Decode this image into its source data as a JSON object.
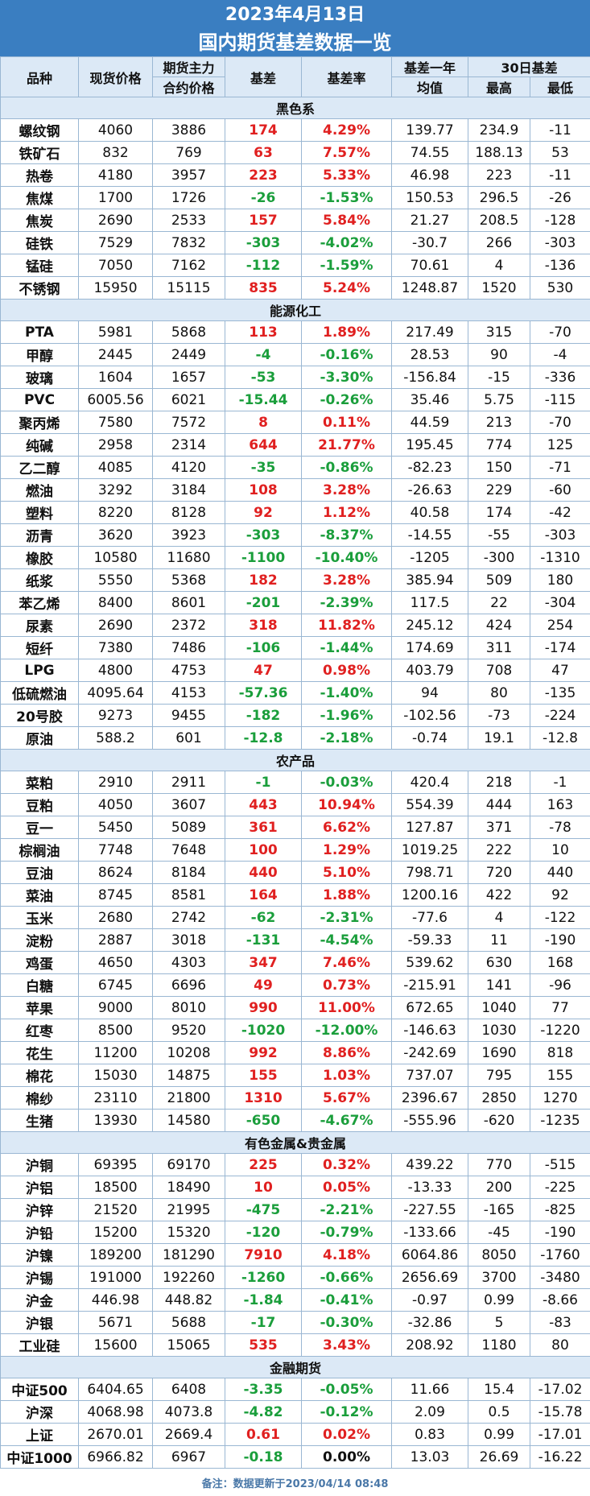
{
  "title": {
    "date": "2023年4月13日",
    "main": "国内期货基差数据一览"
  },
  "headers": {
    "variety": "品种",
    "spot": "现货价格",
    "futures_l1": "期货主力",
    "futures_l2": "合约价格",
    "basis": "基差",
    "basis_rate": "基差率",
    "avg_l1": "基差一年",
    "avg_l2": "均值",
    "d30": "30日基差",
    "high": "最高",
    "low": "最低"
  },
  "colors": {
    "positive": "#e02020",
    "negative": "#1a9e3b",
    "header_bg": "#3a7ec1",
    "section_bg": "#dce9f6"
  },
  "sections": [
    {
      "name": "黑色系",
      "rows": [
        [
          "螺纹钢",
          "4060",
          "3886",
          "174",
          "4.29%",
          "139.77",
          "234.9",
          "-11"
        ],
        [
          "铁矿石",
          "832",
          "769",
          "63",
          "7.57%",
          "74.55",
          "188.13",
          "53"
        ],
        [
          "热卷",
          "4180",
          "3957",
          "223",
          "5.33%",
          "46.98",
          "223",
          "-11"
        ],
        [
          "焦煤",
          "1700",
          "1726",
          "-26",
          "-1.53%",
          "150.53",
          "296.5",
          "-26"
        ],
        [
          "焦炭",
          "2690",
          "2533",
          "157",
          "5.84%",
          "21.27",
          "208.5",
          "-128"
        ],
        [
          "硅铁",
          "7529",
          "7832",
          "-303",
          "-4.02%",
          "-30.7",
          "266",
          "-303"
        ],
        [
          "锰硅",
          "7050",
          "7162",
          "-112",
          "-1.59%",
          "70.61",
          "4",
          "-136"
        ],
        [
          "不锈钢",
          "15950",
          "15115",
          "835",
          "5.24%",
          "1248.87",
          "1520",
          "530"
        ]
      ]
    },
    {
      "name": "能源化工",
      "rows": [
        [
          "PTA",
          "5981",
          "5868",
          "113",
          "1.89%",
          "217.49",
          "315",
          "-70"
        ],
        [
          "甲醇",
          "2445",
          "2449",
          "-4",
          "-0.16%",
          "28.53",
          "90",
          "-4"
        ],
        [
          "玻璃",
          "1604",
          "1657",
          "-53",
          "-3.30%",
          "-156.84",
          "-15",
          "-336"
        ],
        [
          "PVC",
          "6005.56",
          "6021",
          "-15.44",
          "-0.26%",
          "35.46",
          "5.75",
          "-115"
        ],
        [
          "聚丙烯",
          "7580",
          "7572",
          "8",
          "0.11%",
          "44.59",
          "213",
          "-70"
        ],
        [
          "纯碱",
          "2958",
          "2314",
          "644",
          "21.77%",
          "195.45",
          "774",
          "125"
        ],
        [
          "乙二醇",
          "4085",
          "4120",
          "-35",
          "-0.86%",
          "-82.23",
          "150",
          "-71"
        ],
        [
          "燃油",
          "3292",
          "3184",
          "108",
          "3.28%",
          "-26.63",
          "229",
          "-60"
        ],
        [
          "塑料",
          "8220",
          "8128",
          "92",
          "1.12%",
          "40.58",
          "174",
          "-42"
        ],
        [
          "沥青",
          "3620",
          "3923",
          "-303",
          "-8.37%",
          "-14.55",
          "-55",
          "-303"
        ],
        [
          "橡胶",
          "10580",
          "11680",
          "-1100",
          "-10.40%",
          "-1205",
          "-300",
          "-1310"
        ],
        [
          "纸浆",
          "5550",
          "5368",
          "182",
          "3.28%",
          "385.94",
          "509",
          "180"
        ],
        [
          "苯乙烯",
          "8400",
          "8601",
          "-201",
          "-2.39%",
          "117.5",
          "22",
          "-304"
        ],
        [
          "尿素",
          "2690",
          "2372",
          "318",
          "11.82%",
          "245.12",
          "424",
          "254"
        ],
        [
          "短纤",
          "7380",
          "7486",
          "-106",
          "-1.44%",
          "174.69",
          "311",
          "-174"
        ],
        [
          "LPG",
          "4800",
          "4753",
          "47",
          "0.98%",
          "403.79",
          "708",
          "47"
        ],
        [
          "低硫燃油",
          "4095.64",
          "4153",
          "-57.36",
          "-1.40%",
          "94",
          "80",
          "-135"
        ],
        [
          "20号胶",
          "9273",
          "9455",
          "-182",
          "-1.96%",
          "-102.56",
          "-73",
          "-224"
        ],
        [
          "原油",
          "588.2",
          "601",
          "-12.8",
          "-2.18%",
          "-0.74",
          "19.1",
          "-12.8"
        ]
      ]
    },
    {
      "name": "农产品",
      "rows": [
        [
          "菜粕",
          "2910",
          "2911",
          "-1",
          "-0.03%",
          "420.4",
          "218",
          "-1"
        ],
        [
          "豆粕",
          "4050",
          "3607",
          "443",
          "10.94%",
          "554.39",
          "444",
          "163"
        ],
        [
          "豆一",
          "5450",
          "5089",
          "361",
          "6.62%",
          "127.87",
          "371",
          "-78"
        ],
        [
          "棕榈油",
          "7748",
          "7648",
          "100",
          "1.29%",
          "1019.25",
          "222",
          "10"
        ],
        [
          "豆油",
          "8624",
          "8184",
          "440",
          "5.10%",
          "798.71",
          "720",
          "440"
        ],
        [
          "菜油",
          "8745",
          "8581",
          "164",
          "1.88%",
          "1200.16",
          "422",
          "92"
        ],
        [
          "玉米",
          "2680",
          "2742",
          "-62",
          "-2.31%",
          "-77.6",
          "4",
          "-122"
        ],
        [
          "淀粉",
          "2887",
          "3018",
          "-131",
          "-4.54%",
          "-59.33",
          "11",
          "-190"
        ],
        [
          "鸡蛋",
          "4650",
          "4303",
          "347",
          "7.46%",
          "539.62",
          "630",
          "168"
        ],
        [
          "白糖",
          "6745",
          "6696",
          "49",
          "0.73%",
          "-215.91",
          "141",
          "-96"
        ],
        [
          "苹果",
          "9000",
          "8010",
          "990",
          "11.00%",
          "672.65",
          "1040",
          "77"
        ],
        [
          "红枣",
          "8500",
          "9520",
          "-1020",
          "-12.00%",
          "-146.63",
          "1030",
          "-1220"
        ],
        [
          "花生",
          "11200",
          "10208",
          "992",
          "8.86%",
          "-242.69",
          "1690",
          "818"
        ],
        [
          "棉花",
          "15030",
          "14875",
          "155",
          "1.03%",
          "737.07",
          "795",
          "155"
        ],
        [
          "棉纱",
          "23110",
          "21800",
          "1310",
          "5.67%",
          "2396.67",
          "2850",
          "1270"
        ],
        [
          "生猪",
          "13930",
          "14580",
          "-650",
          "-4.67%",
          "-555.96",
          "-620",
          "-1235"
        ]
      ]
    },
    {
      "name": "有色金属&贵金属",
      "rows": [
        [
          "沪铜",
          "69395",
          "69170",
          "225",
          "0.32%",
          "439.22",
          "770",
          "-515"
        ],
        [
          "沪铝",
          "18500",
          "18490",
          "10",
          "0.05%",
          "-13.33",
          "200",
          "-225"
        ],
        [
          "沪锌",
          "21520",
          "21995",
          "-475",
          "-2.21%",
          "-227.55",
          "-165",
          "-825"
        ],
        [
          "沪铅",
          "15200",
          "15320",
          "-120",
          "-0.79%",
          "-133.66",
          "-45",
          "-190"
        ],
        [
          "沪镍",
          "189200",
          "181290",
          "7910",
          "4.18%",
          "6064.86",
          "8050",
          "-1760"
        ],
        [
          "沪锡",
          "191000",
          "192260",
          "-1260",
          "-0.66%",
          "2656.69",
          "3700",
          "-3480"
        ],
        [
          "沪金",
          "446.98",
          "448.82",
          "-1.84",
          "-0.41%",
          "-0.97",
          "0.99",
          "-8.66"
        ],
        [
          "沪银",
          "5671",
          "5688",
          "-17",
          "-0.30%",
          "-32.86",
          "5",
          "-83"
        ],
        [
          "工业硅",
          "15600",
          "15065",
          "535",
          "3.43%",
          "208.92",
          "1180",
          "80"
        ]
      ]
    },
    {
      "name": "金融期货",
      "rows": [
        [
          "中证500",
          "6404.65",
          "6408",
          "-3.35",
          "-0.05%",
          "11.66",
          "15.4",
          "-17.02"
        ],
        [
          "沪深",
          "4068.98",
          "4073.8",
          "-4.82",
          "-0.12%",
          "2.09",
          "0.5",
          "-15.78"
        ],
        [
          "上证",
          "2670.01",
          "2669.4",
          "0.61",
          "0.02%",
          "0.83",
          "0.99",
          "-17.01"
        ],
        [
          "中证1000",
          "6966.82",
          "6967",
          "-0.18",
          "0.00%",
          "13.03",
          "26.69",
          "-16.22"
        ]
      ]
    }
  ],
  "footer": "备注：数据更新于2023/04/14 08:48"
}
